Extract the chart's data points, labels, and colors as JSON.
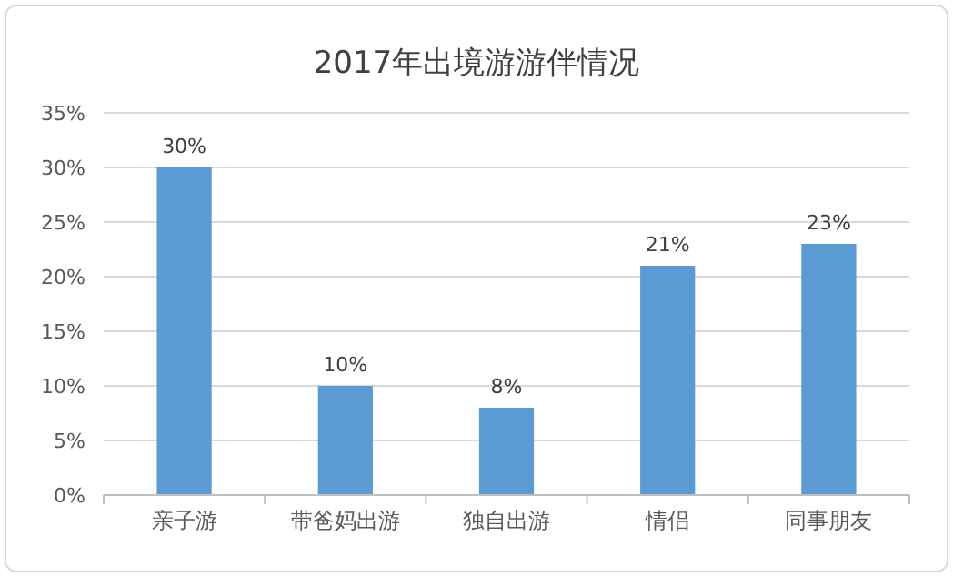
{
  "chart_data": {
    "type": "bar",
    "title": "2017年出境游游伴情况",
    "categories": [
      "亲子游",
      "带爸妈出游",
      "独自出游",
      "情侣",
      "同事朋友"
    ],
    "values": [
      30,
      10,
      8,
      21,
      23
    ],
    "color": "#5b9bd5",
    "value_labels": [
      "30%",
      "10%",
      "8%",
      "21%",
      "23%"
    ],
    "ylim": [
      0,
      35
    ],
    "yticks": [
      {
        "value": 0,
        "label": "0%"
      },
      {
        "value": 5,
        "label": "5%"
      },
      {
        "value": 10,
        "label": "10%"
      },
      {
        "value": 15,
        "label": "15%"
      },
      {
        "value": 20,
        "label": "20%"
      },
      {
        "value": 25,
        "label": "25%"
      },
      {
        "value": 30,
        "label": "30%"
      },
      {
        "value": 35,
        "label": "35%"
      }
    ],
    "grid": "y"
  }
}
